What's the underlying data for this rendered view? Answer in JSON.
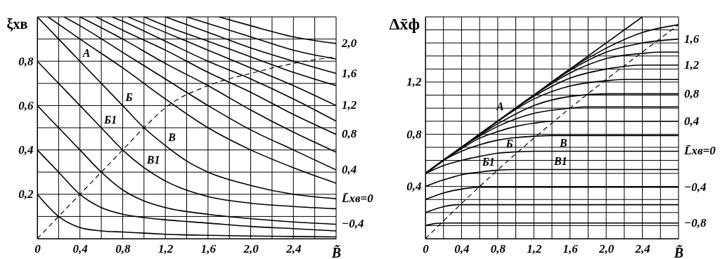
{
  "chart_data": [
    {
      "type": "line",
      "xlabel": "B̃",
      "ylabel": "ξхв",
      "xlim": [
        0,
        2.8
      ],
      "ylim": [
        0,
        1.0
      ],
      "xticks": [
        {
          "value": 0,
          "label": "0"
        },
        {
          "value": 0.2,
          "label": null
        },
        {
          "value": 0.4,
          "label": "0,4"
        },
        {
          "value": 0.6,
          "label": null
        },
        {
          "value": 0.8,
          "label": "0,8"
        },
        {
          "value": 1.0,
          "label": null
        },
        {
          "value": 1.2,
          "label": "1,2"
        },
        {
          "value": 1.4,
          "label": null
        },
        {
          "value": 1.6,
          "label": "1,6"
        },
        {
          "value": 1.8,
          "label": null
        },
        {
          "value": 2.0,
          "label": "2,0"
        },
        {
          "value": 2.2,
          "label": null
        },
        {
          "value": 2.4,
          "label": "2,4"
        },
        {
          "value": 2.6,
          "label": null
        },
        {
          "value": 2.8,
          "label": null
        }
      ],
      "yticks": [
        {
          "value": 0,
          "label": null
        },
        {
          "value": 0.1,
          "label": null
        },
        {
          "value": 0.2,
          "label": "0,2"
        },
        {
          "value": 0.3,
          "label": null
        },
        {
          "value": 0.4,
          "label": "0,4"
        },
        {
          "value": 0.5,
          "label": null
        },
        {
          "value": 0.6,
          "label": "0,6"
        },
        {
          "value": 0.7,
          "label": null
        },
        {
          "value": 0.8,
          "label": "0,8"
        },
        {
          "value": 0.9,
          "label": null
        },
        {
          "value": 1.0,
          "label": null
        }
      ],
      "grid": true,
      "series": [
        {
          "color": "#000000",
          "x": [
            0,
            0.2,
            0.4,
            0.6,
            0.8,
            1.0,
            1.2,
            1.6,
            2.0,
            2.4,
            2.8
          ],
          "values": [
            0.2,
            0.1,
            0.05,
            0.035,
            0.03,
            0.025,
            0.02,
            0.015,
            0.012,
            0.01,
            0.008
          ]
        },
        {
          "color": "#000000",
          "x": [
            0,
            0.2,
            0.4,
            0.6,
            0.8,
            1.0,
            1.2,
            1.6,
            2.0,
            2.4,
            2.8
          ],
          "values": [
            0.4,
            0.3,
            0.2,
            0.14,
            0.11,
            0.095,
            0.085,
            0.07,
            0.055,
            0.045,
            0.035
          ]
        },
        {
          "name": "−0,4",
          "color": "#000000",
          "x": [
            0,
            0.2,
            0.4,
            0.6,
            0.8,
            1.0,
            1.2,
            1.6,
            2.0,
            2.4,
            2.8
          ],
          "values": [
            0.6,
            0.5,
            0.4,
            0.3,
            0.22,
            0.17,
            0.14,
            0.11,
            0.09,
            0.075,
            0.065
          ]
        },
        {
          "color": "#000000",
          "x": [
            0,
            0.2,
            0.4,
            0.6,
            0.8,
            1.0,
            1.2,
            1.6,
            2.0,
            2.4,
            2.8
          ],
          "values": [
            0.8,
            0.7,
            0.6,
            0.5,
            0.4,
            0.32,
            0.26,
            0.19,
            0.16,
            0.145,
            0.135
          ]
        },
        {
          "name": "L̄хв=0",
          "color": "#000000",
          "x": [
            0,
            0.2,
            0.4,
            0.6,
            0.8,
            1.0,
            1.2,
            1.4,
            1.6,
            2.0,
            2.4,
            2.8
          ],
          "values": [
            1.0,
            0.9,
            0.8,
            0.7,
            0.6,
            0.5,
            0.42,
            0.35,
            0.3,
            0.24,
            0.2,
            0.18
          ]
        },
        {
          "color": "#000000",
          "x": [
            0.1,
            0.4,
            0.8,
            1.2,
            1.6,
            2.0,
            2.4,
            2.8
          ],
          "values": [
            1.0,
            0.9,
            0.77,
            0.63,
            0.5,
            0.4,
            0.32,
            0.25
          ]
        },
        {
          "name": "0,4",
          "color": "#000000",
          "x": [
            0.25,
            0.4,
            0.8,
            1.2,
            1.6,
            2.0,
            2.4,
            2.8
          ],
          "values": [
            1.0,
            0.96,
            0.84,
            0.72,
            0.6,
            0.49,
            0.4,
            0.31
          ]
        },
        {
          "color": "#000000",
          "x": [
            0.4,
            0.8,
            1.2,
            1.6,
            2.0,
            2.4,
            2.8
          ],
          "values": [
            1.0,
            0.9,
            0.79,
            0.69,
            0.58,
            0.48,
            0.39
          ]
        },
        {
          "name": "0,8",
          "color": "#000000",
          "x": [
            0.55,
            0.8,
            1.2,
            1.6,
            2.0,
            2.4,
            2.8
          ],
          "values": [
            1.0,
            0.94,
            0.85,
            0.75,
            0.66,
            0.56,
            0.47
          ]
        },
        {
          "color": "#000000",
          "x": [
            0.7,
            0.8,
            1.2,
            1.6,
            2.0,
            2.4,
            2.8
          ],
          "values": [
            1.0,
            0.98,
            0.89,
            0.8,
            0.72,
            0.63,
            0.53
          ]
        },
        {
          "name": "1,2",
          "color": "#000000",
          "x": [
            0.85,
            1.2,
            1.6,
            2.0,
            2.4,
            2.8
          ],
          "values": [
            1.0,
            0.93,
            0.85,
            0.77,
            0.69,
            0.6
          ]
        },
        {
          "color": "#000000",
          "x": [
            1.0,
            1.2,
            1.6,
            2.0,
            2.4,
            2.8
          ],
          "values": [
            1.0,
            0.96,
            0.89,
            0.82,
            0.75,
            0.69
          ]
        },
        {
          "name": "1,6",
          "color": "#000000",
          "x": [
            1.2,
            1.6,
            2.0,
            2.4,
            2.8
          ],
          "values": [
            1.0,
            0.93,
            0.86,
            0.8,
            0.745
          ]
        },
        {
          "color": "#000000",
          "x": [
            1.4,
            1.6,
            2.0,
            2.4,
            2.8
          ],
          "values": [
            1.0,
            0.97,
            0.91,
            0.85,
            0.81
          ]
        },
        {
          "name": "2,0",
          "color": "#000000",
          "x": [
            1.7,
            2.0,
            2.4,
            2.8
          ],
          "values": [
            1.0,
            0.96,
            0.91,
            0.88
          ]
        },
        {
          "color": "#000000",
          "line_style": "dashed",
          "x": [
            0,
            0.4,
            0.8,
            1.0,
            1.2,
            1.6,
            2.0,
            2.4,
            2.8
          ],
          "values": [
            0,
            0.2,
            0.4,
            0.5,
            0.59,
            0.69,
            0.745,
            0.79,
            0.82
          ]
        }
      ],
      "annotations": [
        {
          "text": "А",
          "x": 0.4,
          "y": 0.8
        },
        {
          "text": "Б",
          "x": 0.8,
          "y": 0.6
        },
        {
          "text": "Б1",
          "x": 0.6,
          "y": 0.5
        },
        {
          "text": "В",
          "x": 1.2,
          "y": 0.42
        },
        {
          "text": "В1",
          "x": 1.0,
          "y": 0.32
        }
      ]
    },
    {
      "type": "line",
      "xlabel": "B̃",
      "ylabel": "Δx̄ф",
      "xlim": [
        0,
        2.8
      ],
      "ylim": [
        0,
        1.7
      ],
      "xticks": [
        {
          "value": 0,
          "label": "0"
        },
        {
          "value": 0.2,
          "label": null
        },
        {
          "value": 0.4,
          "label": "0,4"
        },
        {
          "value": 0.6,
          "label": null
        },
        {
          "value": 0.8,
          "label": "0,8"
        },
        {
          "value": 1.0,
          "label": null
        },
        {
          "value": 1.2,
          "label": "1,2"
        },
        {
          "value": 1.4,
          "label": null
        },
        {
          "value": 1.6,
          "label": "1,6"
        },
        {
          "value": 1.8,
          "label": null
        },
        {
          "value": 2.0,
          "label": "2,0"
        },
        {
          "value": 2.2,
          "label": null
        },
        {
          "value": 2.4,
          "label": "2,4"
        },
        {
          "value": 2.6,
          "label": null
        },
        {
          "value": 2.8,
          "label": null
        }
      ],
      "yticks": [
        {
          "value": 0,
          "label": null
        },
        {
          "value": 0.1,
          "label": null
        },
        {
          "value": 0.2,
          "label": null
        },
        {
          "value": 0.3,
          "label": null
        },
        {
          "value": 0.4,
          "label": "0,4"
        },
        {
          "value": 0.5,
          "label": null
        },
        {
          "value": 0.6,
          "label": null
        },
        {
          "value": 0.7,
          "label": null
        },
        {
          "value": 0.8,
          "label": "0,8"
        },
        {
          "value": 0.9,
          "label": null
        },
        {
          "value": 1.0,
          "label": null
        },
        {
          "value": 1.1,
          "label": null
        },
        {
          "value": 1.2,
          "label": "1,2"
        },
        {
          "value": 1.3,
          "label": null
        },
        {
          "value": 1.4,
          "label": null
        },
        {
          "value": 1.5,
          "label": null
        },
        {
          "value": 1.6,
          "label": null
        },
        {
          "value": 1.7,
          "label": null
        }
      ],
      "grid": true,
      "series": [
        {
          "name": "−0,8",
          "color": "#000000",
          "x": [
            0,
            0.1,
            0.2,
            2.8
          ],
          "values": [
            0.1,
            0.115,
            0.12,
            0.12
          ]
        },
        {
          "color": "#000000",
          "x": [
            0,
            0.2,
            0.35,
            2.8
          ],
          "values": [
            0.2,
            0.245,
            0.26,
            0.26
          ]
        },
        {
          "name": "−0,4",
          "color": "#000000",
          "x": [
            0,
            0.2,
            0.4,
            0.6,
            2.8
          ],
          "values": [
            0.3,
            0.35,
            0.38,
            0.395,
            0.395
          ]
        },
        {
          "color": "#000000",
          "x": [
            0,
            0.2,
            0.4,
            0.6,
            0.8,
            1.0,
            2.8
          ],
          "values": [
            0.4,
            0.45,
            0.49,
            0.51,
            0.525,
            0.53,
            0.53
          ]
        },
        {
          "name": "L̄хв=0",
          "color": "#000000",
          "x": [
            0,
            0.2,
            0.4,
            0.6,
            0.8,
            1.0,
            1.2,
            2.8
          ],
          "values": [
            0.5,
            0.56,
            0.6,
            0.63,
            0.655,
            0.665,
            0.67,
            0.67
          ]
        },
        {
          "color": "#000000",
          "x": [
            0,
            0.2,
            0.4,
            0.6,
            0.8,
            1.0,
            1.2,
            1.4,
            2.8
          ],
          "values": [
            0.5,
            0.6,
            0.67,
            0.72,
            0.755,
            0.775,
            0.785,
            0.79,
            0.79
          ]
        },
        {
          "name": "0,4",
          "color": "#000000",
          "x": [
            0,
            0.2,
            0.4,
            0.6,
            0.8,
            1.0,
            1.2,
            1.4,
            2.8
          ],
          "values": [
            0.5,
            0.6,
            0.69,
            0.77,
            0.82,
            0.86,
            0.885,
            0.9,
            0.9
          ]
        },
        {
          "color": "#000000",
          "x": [
            0,
            0.4,
            0.8,
            1.2,
            1.6,
            1.8,
            2.8
          ],
          "values": [
            0.5,
            0.7,
            0.86,
            0.96,
            1.0,
            1.01,
            1.01
          ]
        },
        {
          "name": "0,8",
          "color": "#000000",
          "x": [
            0,
            0.4,
            0.8,
            1.2,
            1.6,
            2.0,
            2.8
          ],
          "values": [
            0.5,
            0.7,
            0.88,
            1.02,
            1.09,
            1.11,
            1.11
          ]
        },
        {
          "color": "#000000",
          "x": [
            0,
            0.4,
            0.8,
            1.2,
            1.6,
            2.0,
            2.2,
            2.8
          ],
          "values": [
            0.5,
            0.7,
            0.9,
            1.07,
            1.17,
            1.21,
            1.22,
            1.22
          ]
        },
        {
          "name": "1,2",
          "color": "#000000",
          "x": [
            0,
            0.4,
            0.8,
            1.2,
            1.6,
            2.0,
            2.4,
            2.8
          ],
          "values": [
            0.5,
            0.7,
            0.9,
            1.09,
            1.23,
            1.3,
            1.33,
            1.33
          ]
        },
        {
          "color": "#000000",
          "x": [
            0,
            0.8,
            1.2,
            1.6,
            2.0,
            2.4,
            2.6,
            2.8
          ],
          "values": [
            0.5,
            0.9,
            1.1,
            1.27,
            1.38,
            1.42,
            1.43,
            1.43
          ]
        },
        {
          "name": "1,6",
          "color": "#000000",
          "x": [
            0,
            0.8,
            1.2,
            1.6,
            2.0,
            2.4,
            2.8
          ],
          "values": [
            0.5,
            0.9,
            1.1,
            1.29,
            1.43,
            1.5,
            1.53
          ]
        },
        {
          "color": "#000000",
          "x": [
            0,
            0.8,
            1.2,
            1.6,
            2.0,
            2.4,
            2.8
          ],
          "values": [
            0.5,
            0.9,
            1.1,
            1.3,
            1.46,
            1.58,
            1.64
          ]
        },
        {
          "color": "#000000",
          "x": [
            0,
            0.9,
            2.4
          ],
          "values": [
            0.5,
            0.95,
            1.7
          ]
        },
        {
          "color": "#000000",
          "line_style": "dashed",
          "x": [
            0,
            0.6,
            1.0,
            1.6,
            2.0,
            2.4,
            2.8
          ],
          "values": [
            0,
            0.4,
            0.65,
            1.0,
            1.22,
            1.43,
            1.64
          ]
        }
      ],
      "annotations": [
        {
          "text": "А",
          "x": 0.9,
          "y": 0.95
        },
        {
          "text": "Б",
          "x": 1.0,
          "y": 0.665
        },
        {
          "text": "Б1",
          "x": 0.8,
          "y": 0.525
        },
        {
          "text": "В",
          "x": 1.6,
          "y": 0.67
        },
        {
          "text": "В1",
          "x": 1.6,
          "y": 0.53
        }
      ]
    }
  ]
}
